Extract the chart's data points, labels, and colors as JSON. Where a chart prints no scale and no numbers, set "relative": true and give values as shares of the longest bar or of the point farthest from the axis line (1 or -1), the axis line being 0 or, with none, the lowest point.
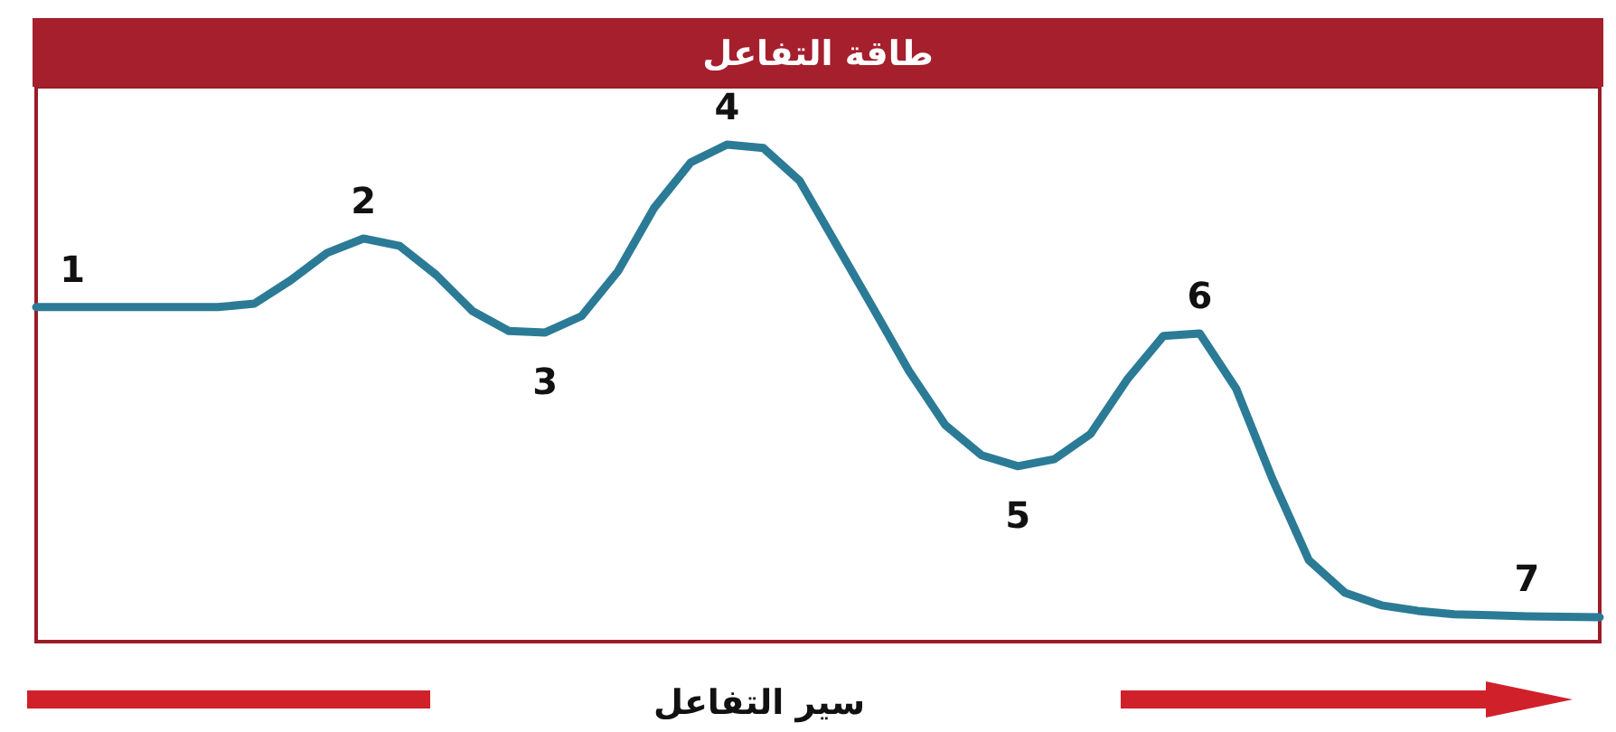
{
  "chart_data": {
    "type": "line",
    "title": "طاقة التفاعل",
    "xlabel": "سير التفاعل",
    "relative": true,
    "categories": [
      null,
      null,
      null,
      null,
      null,
      null,
      null,
      null,
      null,
      null,
      null,
      null,
      null,
      null,
      null,
      null,
      null,
      null,
      null,
      null,
      null,
      null,
      null,
      null,
      null,
      null,
      null,
      null,
      null,
      null,
      null,
      null,
      null,
      null,
      null,
      null,
      null,
      null,
      null,
      null,
      null,
      null,
      null,
      null
    ],
    "series": [
      {
        "color": "#2b7b96",
        "values": [
          0.673,
          0.673,
          0.673,
          0.673,
          0.673,
          0.673,
          0.68,
          0.727,
          0.782,
          0.811,
          0.796,
          0.738,
          0.665,
          0.625,
          0.622,
          0.655,
          0.745,
          0.873,
          0.964,
          1,
          0.993,
          0.927,
          0.8,
          0.673,
          0.545,
          0.436,
          0.375,
          0.353,
          0.367,
          0.418,
          0.527,
          0.615,
          0.62,
          0.509,
          0.327,
          0.164,
          0.098,
          0.073,
          0.062,
          0.055,
          0.053,
          0.051,
          0.05,
          0.049
        ]
      }
    ],
    "annotations": [
      "1",
      "2",
      "3",
      "4",
      "5",
      "6",
      "7"
    ]
  }
}
